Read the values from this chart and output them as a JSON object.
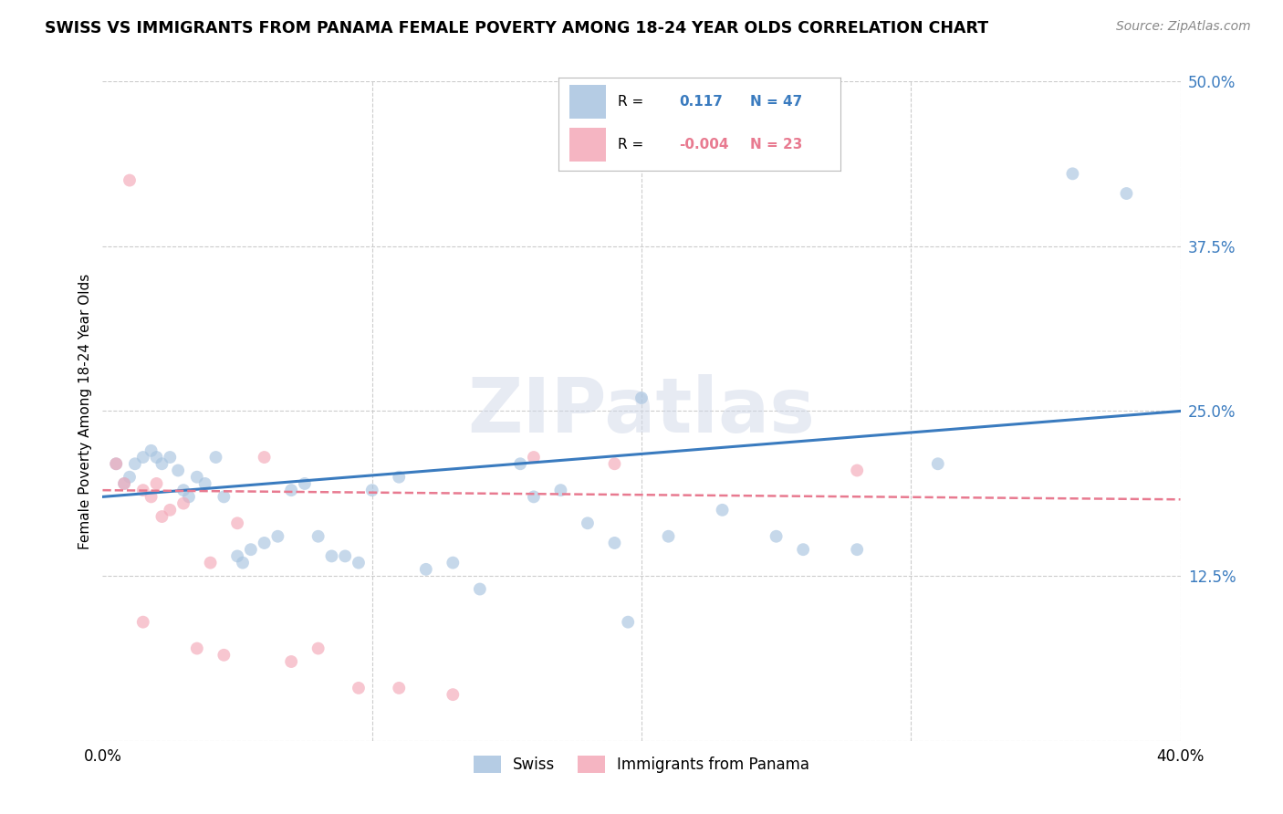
{
  "title": "SWISS VS IMMIGRANTS FROM PANAMA FEMALE POVERTY AMONG 18-24 YEAR OLDS CORRELATION CHART",
  "source": "Source: ZipAtlas.com",
  "ylabel": "Female Poverty Among 18-24 Year Olds",
  "xlim": [
    0.0,
    0.4
  ],
  "ylim": [
    0.0,
    0.5
  ],
  "yticks": [
    0.0,
    0.125,
    0.25,
    0.375,
    0.5
  ],
  "xticks": [
    0.0,
    0.1,
    0.2,
    0.3,
    0.4
  ],
  "ytick_labels": [
    "",
    "12.5%",
    "25.0%",
    "37.5%",
    "50.0%"
  ],
  "xtick_labels": [
    "0.0%",
    "",
    "",
    "",
    "40.0%"
  ],
  "background_color": "#ffffff",
  "grid_color": "#cccccc",
  "swiss_color": "#a8c4e0",
  "panama_color": "#f4a8b8",
  "swiss_line_color": "#3a7bbf",
  "panama_line_color": "#e87a90",
  "legend_R_swiss": "0.117",
  "legend_N_swiss": "47",
  "legend_R_panama": "-0.004",
  "legend_N_panama": "23",
  "swiss_x": [
    0.005,
    0.008,
    0.01,
    0.012,
    0.015,
    0.018,
    0.02,
    0.022,
    0.025,
    0.028,
    0.03,
    0.032,
    0.035,
    0.038,
    0.042,
    0.045,
    0.05,
    0.052,
    0.055,
    0.06,
    0.065,
    0.07,
    0.075,
    0.08,
    0.085,
    0.09,
    0.095,
    0.1,
    0.11,
    0.12,
    0.13,
    0.14,
    0.155,
    0.16,
    0.17,
    0.18,
    0.19,
    0.2,
    0.21,
    0.23,
    0.25,
    0.26,
    0.28,
    0.36,
    0.38,
    0.195,
    0.31
  ],
  "swiss_y": [
    0.21,
    0.195,
    0.2,
    0.21,
    0.215,
    0.22,
    0.215,
    0.21,
    0.215,
    0.205,
    0.19,
    0.185,
    0.2,
    0.195,
    0.215,
    0.185,
    0.14,
    0.135,
    0.145,
    0.15,
    0.155,
    0.19,
    0.195,
    0.155,
    0.14,
    0.14,
    0.135,
    0.19,
    0.2,
    0.13,
    0.135,
    0.115,
    0.21,
    0.185,
    0.19,
    0.165,
    0.15,
    0.26,
    0.155,
    0.175,
    0.155,
    0.145,
    0.145,
    0.43,
    0.415,
    0.09,
    0.21
  ],
  "panama_x": [
    0.005,
    0.008,
    0.01,
    0.015,
    0.018,
    0.02,
    0.022,
    0.025,
    0.03,
    0.035,
    0.04,
    0.045,
    0.05,
    0.06,
    0.07,
    0.08,
    0.095,
    0.11,
    0.13,
    0.16,
    0.19,
    0.015,
    0.28
  ],
  "panama_y": [
    0.21,
    0.195,
    0.425,
    0.19,
    0.185,
    0.195,
    0.17,
    0.175,
    0.18,
    0.07,
    0.135,
    0.065,
    0.165,
    0.215,
    0.06,
    0.07,
    0.04,
    0.04,
    0.035,
    0.215,
    0.21,
    0.09,
    0.205
  ],
  "marker_size": 100,
  "alpha": 0.65,
  "watermark": "ZIPatlas",
  "watermark_color": "#d0d8e8",
  "watermark_alpha": 0.5
}
